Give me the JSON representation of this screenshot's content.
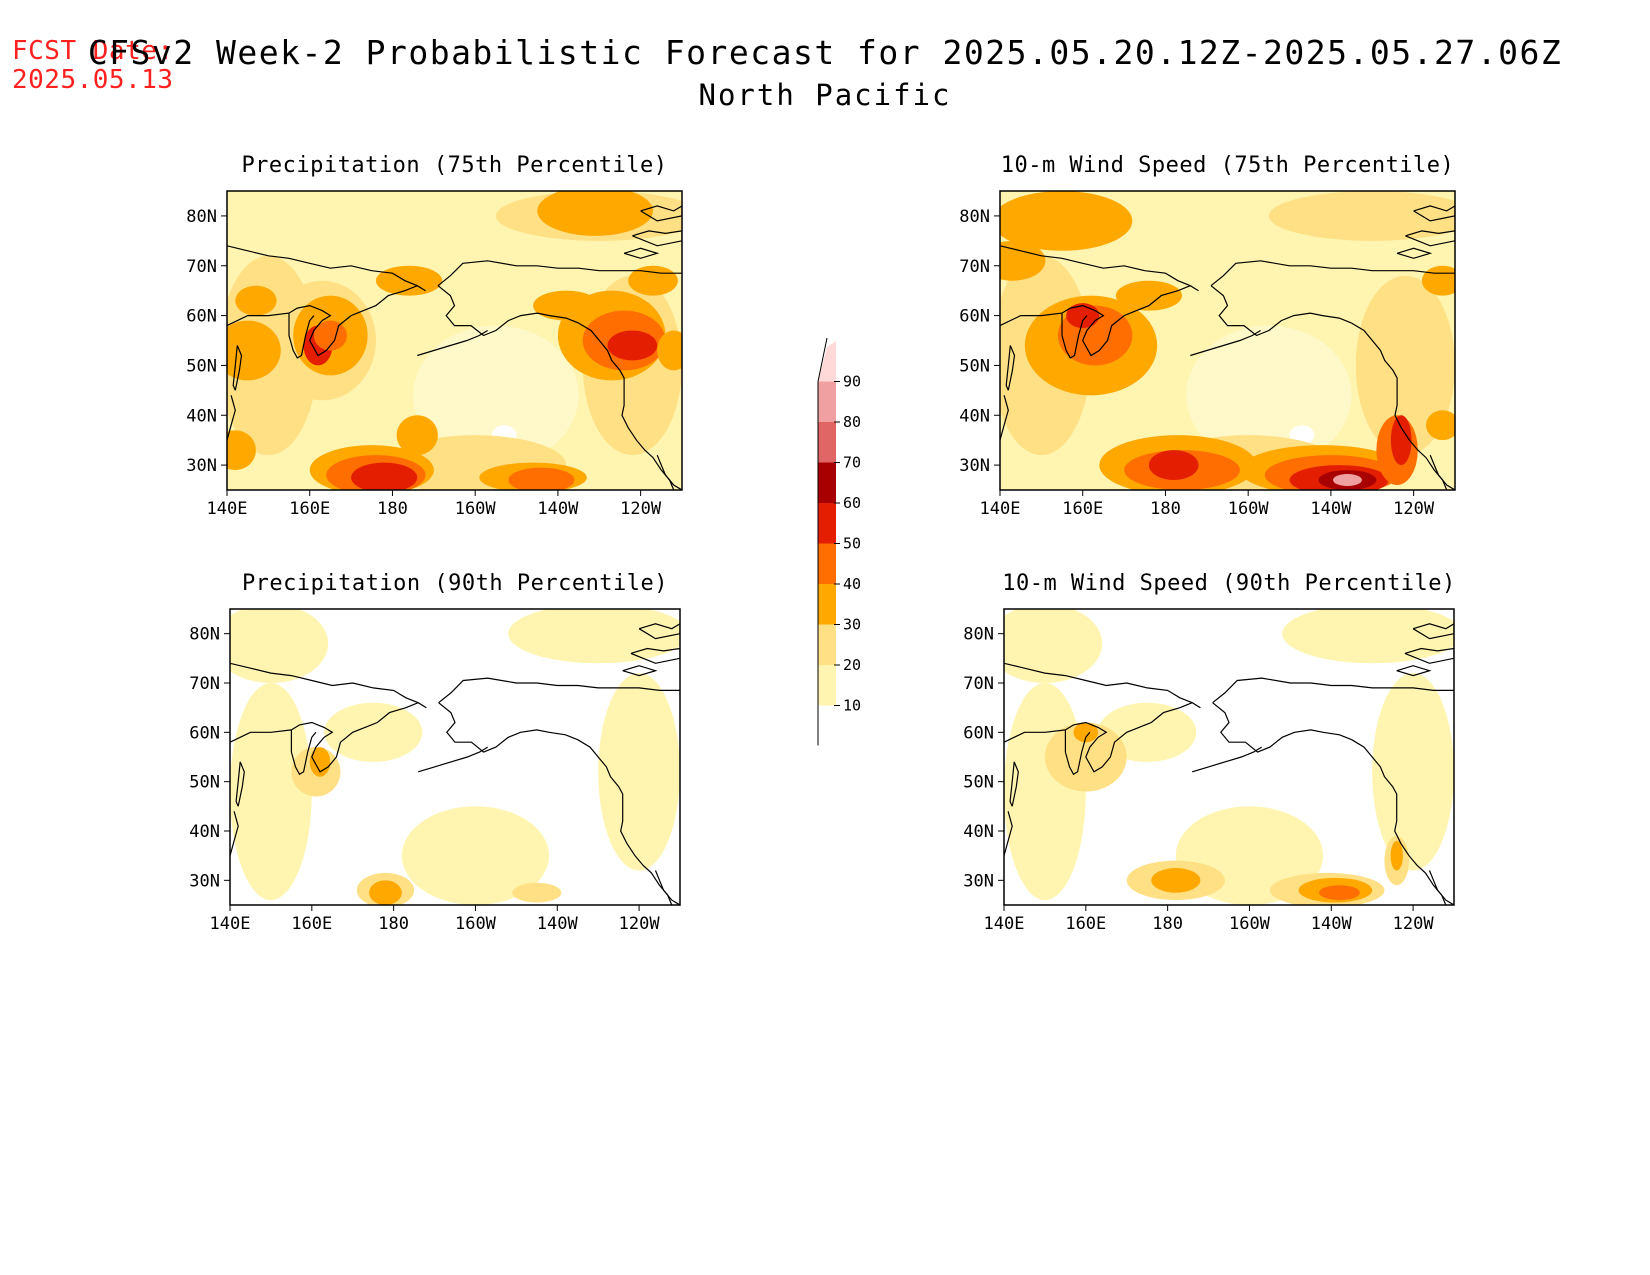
{
  "header": {
    "fcst_label": "FCST Date:",
    "fcst_date": "2025.05.13",
    "title": "CFSv2 Week-2 Probabilistic Forecast for 2025.05.20.12Z-2025.05.27.06Z",
    "subtitle": "North Pacific"
  },
  "panels": [
    {
      "id": "precip75",
      "title": "Precipitation (75th Percentile)",
      "blobs": [
        {
          "lon": 163,
          "lat": 55,
          "rx": 13,
          "ry": 12,
          "level": 1
        },
        {
          "lon": 165,
          "lat": 56,
          "rx": 9,
          "ry": 8,
          "level": 2
        },
        {
          "lon": 162,
          "lat": 54,
          "rx": 3.5,
          "ry": 4,
          "level": 4
        },
        {
          "lon": 165,
          "lat": 56,
          "rx": 4,
          "ry": 3,
          "level": 3
        },
        {
          "lon": 145,
          "lat": 53,
          "rx": 8,
          "ry": 6,
          "level": 2
        },
        {
          "lon": 142,
          "lat": 33,
          "rx": 5,
          "ry": 4,
          "level": 2
        },
        {
          "lon": 175,
          "lat": 29,
          "rx": 15,
          "ry": 5,
          "level": 2
        },
        {
          "lon": 176,
          "lat": 28,
          "rx": 12,
          "ry": 4,
          "level": 3
        },
        {
          "lon": 178,
          "lat": 27.5,
          "rx": 8,
          "ry": 3,
          "level": 4
        },
        {
          "lon": 186,
          "lat": 36,
          "rx": 5,
          "ry": 4,
          "level": 2
        },
        {
          "lon": 214,
          "lat": 27.5,
          "rx": 13,
          "ry": 3,
          "level": 2
        },
        {
          "lon": 216,
          "lat": 27,
          "rx": 8,
          "ry": 2.5,
          "level": 3
        },
        {
          "lon": 222,
          "lat": 62,
          "rx": 8,
          "ry": 3,
          "level": 2
        },
        {
          "lon": 233,
          "lat": 56,
          "rx": 13,
          "ry": 9,
          "level": 2
        },
        {
          "lon": 236,
          "lat": 55,
          "rx": 10,
          "ry": 6,
          "level": 3
        },
        {
          "lon": 238,
          "lat": 54,
          "rx": 6,
          "ry": 3,
          "level": 4
        },
        {
          "lon": 248,
          "lat": 53,
          "rx": 4,
          "ry": 4,
          "level": 2
        },
        {
          "lon": 184,
          "lat": 67,
          "rx": 8,
          "ry": 3,
          "level": 2
        },
        {
          "lon": 243,
          "lat": 67,
          "rx": 6,
          "ry": 3,
          "level": 2
        },
        {
          "lon": 229,
          "lat": 81,
          "rx": 14,
          "ry": 5,
          "level": 2
        },
        {
          "lon": 147,
          "lat": 63,
          "rx": 5,
          "ry": 3,
          "level": 2
        }
      ]
    },
    {
      "id": "wind75",
      "title": "10-m Wind Speed (75th Percentile)",
      "blobs": [
        {
          "lon": 155,
          "lat": 79,
          "rx": 17,
          "ry": 6,
          "level": 2
        },
        {
          "lon": 143,
          "lat": 71,
          "rx": 8,
          "ry": 4,
          "level": 2
        },
        {
          "lon": 162,
          "lat": 54,
          "rx": 16,
          "ry": 10,
          "level": 2
        },
        {
          "lon": 163,
          "lat": 56,
          "rx": 9,
          "ry": 6,
          "level": 3
        },
        {
          "lon": 160,
          "lat": 60,
          "rx": 4,
          "ry": 2.5,
          "level": 4
        },
        {
          "lon": 176,
          "lat": 64,
          "rx": 8,
          "ry": 3,
          "level": 2
        },
        {
          "lon": 183,
          "lat": 30,
          "rx": 19,
          "ry": 6,
          "level": 2
        },
        {
          "lon": 184,
          "lat": 29,
          "rx": 14,
          "ry": 4,
          "level": 3
        },
        {
          "lon": 182,
          "lat": 30,
          "rx": 6,
          "ry": 3,
          "level": 4
        },
        {
          "lon": 218,
          "lat": 29,
          "rx": 20,
          "ry": 5,
          "level": 2
        },
        {
          "lon": 220,
          "lat": 28,
          "rx": 16,
          "ry": 4,
          "level": 3
        },
        {
          "lon": 222,
          "lat": 27,
          "rx": 12,
          "ry": 3,
          "level": 4
        },
        {
          "lon": 224,
          "lat": 27,
          "rx": 7,
          "ry": 2,
          "level": 5
        },
        {
          "lon": 224,
          "lat": 27,
          "rx": 3.5,
          "ry": 1.2,
          "level": 7
        },
        {
          "lon": 236,
          "lat": 33,
          "rx": 5,
          "ry": 7,
          "level": 3
        },
        {
          "lon": 237,
          "lat": 35,
          "rx": 2.5,
          "ry": 5,
          "level": 4
        },
        {
          "lon": 247,
          "lat": 38,
          "rx": 4,
          "ry": 3,
          "level": 2
        },
        {
          "lon": 247,
          "lat": 67,
          "rx": 5,
          "ry": 3,
          "level": 2
        }
      ]
    },
    {
      "id": "precip90",
      "title": "Precipitation (90th Percentile)",
      "blobs": [
        {
          "lon": 161,
          "lat": 52,
          "rx": 6,
          "ry": 5,
          "level": 1
        },
        {
          "lon": 162,
          "lat": 54,
          "rx": 2.5,
          "ry": 3,
          "level": 2
        },
        {
          "lon": 178,
          "lat": 28,
          "rx": 7,
          "ry": 3.5,
          "level": 1
        },
        {
          "lon": 178,
          "lat": 27.5,
          "rx": 4,
          "ry": 2.5,
          "level": 2
        },
        {
          "lon": 215,
          "lat": 27.5,
          "rx": 6,
          "ry": 2,
          "level": 1
        }
      ]
    },
    {
      "id": "wind90",
      "title": "10-m Wind Speed (90th Percentile)",
      "blobs": [
        {
          "lon": 160,
          "lat": 55,
          "rx": 10,
          "ry": 7,
          "level": 1
        },
        {
          "lon": 160,
          "lat": 60,
          "rx": 3,
          "ry": 2,
          "level": 2
        },
        {
          "lon": 182,
          "lat": 30,
          "rx": 12,
          "ry": 4,
          "level": 1
        },
        {
          "lon": 182,
          "lat": 30,
          "rx": 6,
          "ry": 2.5,
          "level": 2
        },
        {
          "lon": 219,
          "lat": 28,
          "rx": 14,
          "ry": 3.5,
          "level": 1
        },
        {
          "lon": 221,
          "lat": 28,
          "rx": 9,
          "ry": 2.5,
          "level": 2
        },
        {
          "lon": 222,
          "lat": 27.5,
          "rx": 5,
          "ry": 1.5,
          "level": 3
        },
        {
          "lon": 236,
          "lat": 34,
          "rx": 3,
          "ry": 5,
          "level": 1
        },
        {
          "lon": 236,
          "lat": 35,
          "rx": 1.5,
          "ry": 3,
          "level": 2
        }
      ]
    }
  ],
  "axes": {
    "lon_ticks": [
      140,
      160,
      180,
      200,
      220,
      240
    ],
    "lon_labels": [
      "140E",
      "160E",
      "180",
      "160W",
      "140W",
      "120W"
    ],
    "lat_ticks": [
      30,
      40,
      50,
      60,
      70,
      80
    ],
    "lat_labels": [
      "30N",
      "40N",
      "50N",
      "60N",
      "70N",
      "80N"
    ],
    "lon_range": [
      140,
      250
    ],
    "lat_range": [
      25,
      85
    ]
  },
  "colorbar": {
    "levels": [
      10,
      20,
      30,
      40,
      50,
      60,
      70,
      80,
      90
    ],
    "colors": [
      "#fff5b0",
      "#ffe084",
      "#ffa800",
      "#ff6e00",
      "#e41e00",
      "#a80000",
      "#e06666",
      "#f0a0a0",
      "#ffd8d8"
    ]
  },
  "coastlines": {
    "asia": [
      [
        140,
        74
      ],
      [
        145,
        73
      ],
      [
        150,
        72
      ],
      [
        155,
        71.5
      ],
      [
        160,
        70.5
      ],
      [
        165,
        69.5
      ],
      [
        170,
        70
      ],
      [
        175,
        69
      ],
      [
        180,
        68.5
      ],
      [
        183,
        67
      ],
      [
        186,
        66
      ],
      [
        188,
        65
      ]
    ],
    "kamchatka": [
      [
        140,
        58
      ],
      [
        145,
        60
      ],
      [
        150,
        60
      ],
      [
        155,
        60.5
      ],
      [
        157,
        61.5
      ],
      [
        160,
        62
      ],
      [
        163,
        61
      ],
      [
        165,
        60
      ],
      [
        163,
        59
      ],
      [
        161,
        57
      ],
      [
        160,
        55
      ],
      [
        162,
        52
      ],
      [
        164,
        53
      ],
      [
        166,
        55
      ],
      [
        167,
        58
      ],
      [
        170,
        60
      ],
      [
        173,
        61
      ],
      [
        176,
        62
      ],
      [
        179,
        64
      ],
      [
        183,
        65
      ],
      [
        186,
        66
      ]
    ],
    "okhotsk": [
      [
        155,
        60.5
      ],
      [
        155,
        56
      ],
      [
        156,
        53
      ],
      [
        157,
        51.5
      ],
      [
        158,
        52
      ],
      [
        159,
        56
      ],
      [
        160,
        59
      ],
      [
        161,
        60
      ]
    ],
    "sakhalin": [
      [
        142,
        45
      ],
      [
        143,
        49
      ],
      [
        143.5,
        52
      ],
      [
        142.5,
        54
      ],
      [
        142,
        50
      ],
      [
        141.5,
        46
      ],
      [
        142,
        45
      ]
    ],
    "japan": [
      [
        141,
        44
      ],
      [
        142,
        41
      ],
      [
        141,
        38
      ],
      [
        140,
        35
      ]
    ],
    "alaska": [
      [
        191,
        66
      ],
      [
        194,
        68
      ],
      [
        197,
        70.5
      ],
      [
        203,
        71
      ],
      [
        210,
        70
      ],
      [
        215,
        70
      ],
      [
        220,
        69.5
      ],
      [
        225,
        69.5
      ],
      [
        230,
        69
      ],
      [
        235,
        69
      ],
      [
        240,
        69
      ],
      [
        245,
        68.5
      ],
      [
        250,
        68.5
      ]
    ],
    "alaska_w": [
      [
        191,
        66
      ],
      [
        194,
        64
      ],
      [
        195,
        62
      ],
      [
        193,
        60
      ],
      [
        195,
        58
      ],
      [
        199,
        58
      ],
      [
        202,
        56
      ],
      [
        205,
        57
      ],
      [
        208,
        59
      ],
      [
        211,
        60
      ],
      [
        215,
        60.5
      ],
      [
        218,
        60
      ],
      [
        222,
        59.5
      ],
      [
        225,
        58.5
      ]
    ],
    "aleutian": [
      [
        186,
        52
      ],
      [
        190,
        53
      ],
      [
        194,
        54
      ],
      [
        198,
        55
      ],
      [
        201,
        56
      ],
      [
        203,
        57
      ]
    ],
    "na_coast": [
      [
        225,
        58.5
      ],
      [
        228,
        57
      ],
      [
        230,
        55
      ],
      [
        232,
        53
      ],
      [
        233,
        51
      ],
      [
        235,
        49
      ],
      [
        236,
        47.5
      ],
      [
        236,
        45
      ],
      [
        236,
        42
      ],
      [
        235.5,
        40
      ],
      [
        237,
        37.5
      ],
      [
        239,
        35
      ],
      [
        241,
        33
      ],
      [
        243,
        31.5
      ],
      [
        245,
        29
      ],
      [
        247,
        27
      ],
      [
        248,
        25
      ]
    ],
    "baja": [
      [
        244,
        32
      ],
      [
        245,
        30
      ],
      [
        246,
        28
      ],
      [
        248,
        26
      ],
      [
        250,
        25
      ]
    ],
    "arctic_isl": [
      [
        240,
        81
      ],
      [
        244,
        82
      ],
      [
        248,
        81
      ],
      [
        250,
        82
      ],
      [
        250,
        80
      ],
      [
        244,
        79
      ],
      [
        240,
        81
      ]
    ],
    "arctic_isl2": [
      [
        238,
        76
      ],
      [
        242,
        77
      ],
      [
        246,
        76.5
      ],
      [
        250,
        77
      ],
      [
        250,
        75
      ],
      [
        244,
        74
      ],
      [
        238,
        76
      ]
    ],
    "arctic_isl3": [
      [
        236,
        72.5
      ],
      [
        240,
        73.5
      ],
      [
        244,
        72.5
      ],
      [
        240,
        71.5
      ],
      [
        236,
        72.5
      ]
    ]
  }
}
